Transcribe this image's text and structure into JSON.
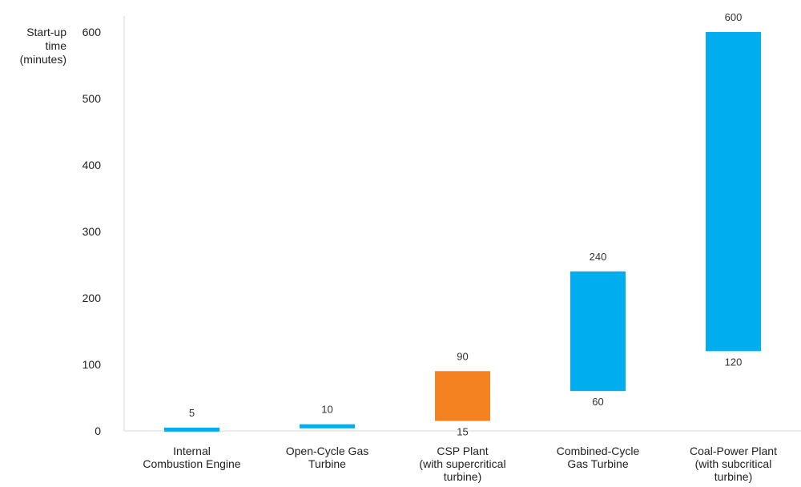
{
  "chart_data": {
    "type": "bar",
    "subtype": "floating-range",
    "ylabel": [
      "Start-up",
      "time",
      "(minutes)"
    ],
    "ylim": [
      0,
      600
    ],
    "yticks": [
      0,
      100,
      200,
      300,
      400,
      500,
      600
    ],
    "grid": false,
    "legend": "none",
    "categories": [
      [
        "Internal",
        "Combustion Engine"
      ],
      [
        "Open-Cycle Gas",
        "Turbine"
      ],
      [
        "CSP Plant",
        "(with supercritical",
        "turbine)"
      ],
      [
        "Combined-Cycle",
        "Gas Turbine"
      ],
      [
        "Coal-Power Plant",
        "(with subcritical",
        "turbine)"
      ]
    ],
    "ranges": [
      {
        "low": null,
        "high": 5,
        "high_label": "5",
        "low_label": "",
        "color": "#00adef"
      },
      {
        "low": null,
        "high": 10,
        "high_label": "10",
        "low_label": "",
        "color": "#00adef"
      },
      {
        "low": 15,
        "high": 90,
        "high_label": "90",
        "low_label": "15",
        "color": "#f58220"
      },
      {
        "low": 60,
        "high": 240,
        "high_label": "240",
        "low_label": "60",
        "color": "#00adef"
      },
      {
        "low": 120,
        "high": 600,
        "high_label": "600",
        "low_label": "120",
        "color": "#00adef"
      }
    ]
  }
}
